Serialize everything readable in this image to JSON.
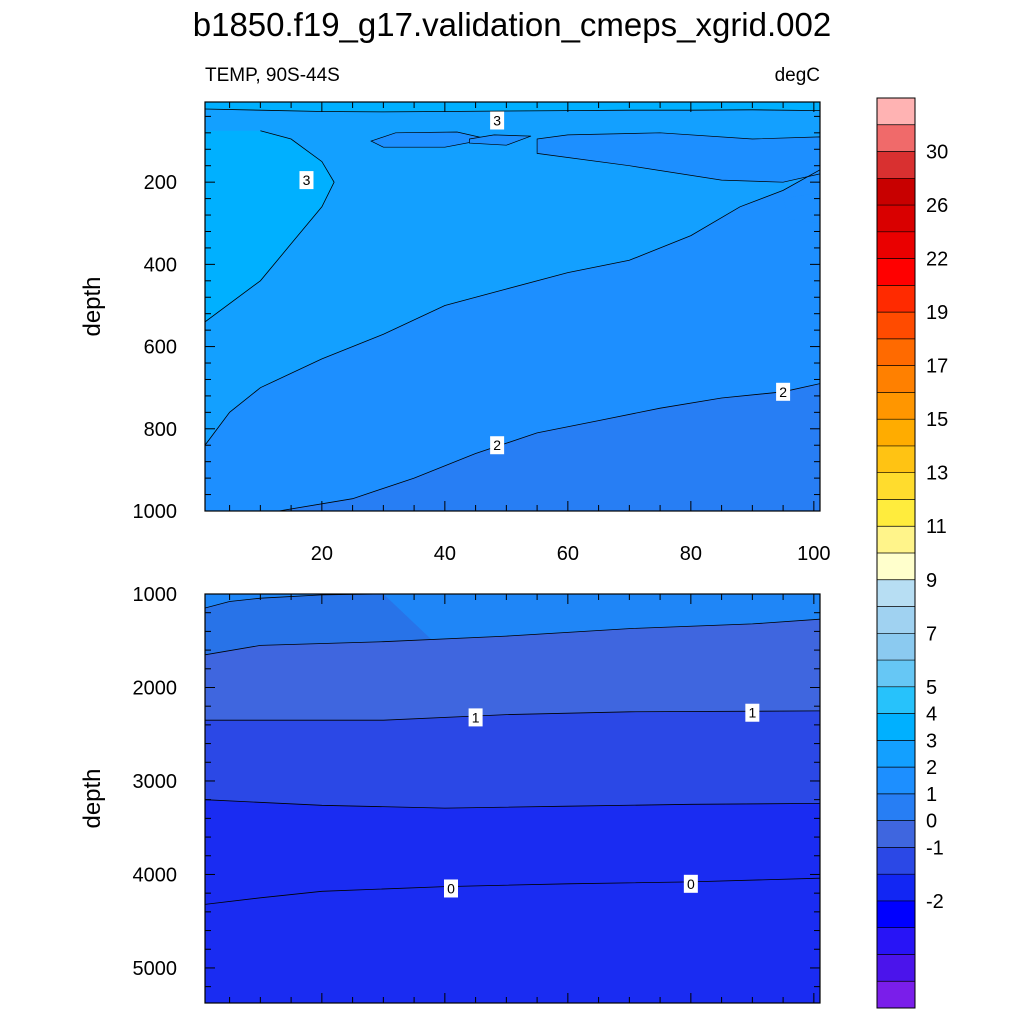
{
  "title": "b1850.f19_g17.validation_cmeps_xgrid.002",
  "chart_data": [
    {
      "type": "contour",
      "panel": "upper",
      "left_string": "TEMP, 90S-44S",
      "right_string": "degC",
      "ylabel": "depth",
      "xlim": [
        1,
        101
      ],
      "ylim": [
        1000,
        5
      ],
      "xticks": [
        20,
        40,
        60,
        80,
        100
      ],
      "xtick_labels": [
        "20",
        "40",
        "60",
        "80",
        "100"
      ],
      "yticks": [
        200,
        400,
        600,
        800,
        1000
      ],
      "ytick_labels": [
        "200",
        "400",
        "600",
        "800",
        "1000"
      ],
      "colors": {
        "band_gt_3": "#00b0ff",
        "band_3": "#13a0ff",
        "band_2_5": "#1d8fff",
        "band_2": "#277ef4"
      },
      "contours": [
        {
          "level": "3",
          "points": [
            [
              1,
              22
            ],
            [
              10,
              25
            ],
            [
              20,
              28
            ],
            [
              30,
              29
            ],
            [
              40,
              28
            ],
            [
              50,
              27
            ],
            [
              60,
              26
            ],
            [
              70,
              25
            ],
            [
              80,
              25
            ],
            [
              90,
              24
            ],
            [
              101,
              26
            ]
          ]
        },
        {
          "level": "3",
          "points": [
            [
              10,
              75
            ],
            [
              15,
              95
            ],
            [
              20,
              150
            ],
            [
              22,
              200
            ],
            [
              20,
              260
            ],
            [
              15,
              350
            ],
            [
              10,
              440
            ],
            [
              1,
              540
            ]
          ]
        },
        {
          "level": "2.5",
          "points": [
            [
              1,
              840
            ],
            [
              5,
              760
            ],
            [
              10,
              700
            ],
            [
              20,
              630
            ],
            [
              30,
              570
            ],
            [
              40,
              500
            ],
            [
              50,
              460
            ],
            [
              60,
              420
            ],
            [
              70,
              390
            ],
            [
              80,
              330
            ],
            [
              88,
              260
            ],
            [
              95,
              220
            ],
            [
              101,
              170
            ]
          ]
        },
        {
          "level": "2",
          "points": [
            [
              13,
              1000
            ],
            [
              25,
              970
            ],
            [
              35,
              920
            ],
            [
              45,
              860
            ],
            [
              55,
              810
            ],
            [
              65,
              780
            ],
            [
              75,
              750
            ],
            [
              85,
              725
            ],
            [
              95,
              710
            ],
            [
              101,
              690
            ]
          ]
        }
      ],
      "labels": [
        {
          "text": "3",
          "x": 48.5,
          "y": 50
        },
        {
          "text": "3",
          "x": 17.5,
          "y": 195
        },
        {
          "text": "2",
          "x": 48.5,
          "y": 840
        },
        {
          "text": "2",
          "x": 95,
          "y": 710
        }
      ]
    },
    {
      "type": "contour",
      "panel": "lower",
      "ylabel": "depth",
      "xlim": [
        1,
        101
      ],
      "ylim": [
        5375,
        1000
      ],
      "yticks": [
        1000,
        2000,
        3000,
        4000,
        5000
      ],
      "ytick_labels": [
        "1000",
        "2000",
        "3000",
        "4000",
        "5000"
      ],
      "colors": {
        "band_2": "#1f86f7",
        "band_1_5": "#2873e8",
        "band_1": "#3f66df",
        "band_0_5": "#2b48e6",
        "band_0": "#1a2cf2"
      },
      "contours": [
        {
          "level": "2",
          "points": [
            [
              1,
              1150
            ],
            [
              5,
              1080
            ],
            [
              10,
              1045
            ],
            [
              20,
              1010
            ],
            [
              30,
              1000
            ]
          ]
        },
        {
          "level": "1.5",
          "points": [
            [
              1,
              1650
            ],
            [
              10,
              1550
            ],
            [
              30,
              1510
            ],
            [
              50,
              1450
            ],
            [
              70,
              1370
            ],
            [
              90,
              1320
            ],
            [
              101,
              1270
            ]
          ]
        },
        {
          "level": "1",
          "points": [
            [
              1,
              2350
            ],
            [
              30,
              2350
            ],
            [
              50,
              2290
            ],
            [
              70,
              2260
            ],
            [
              101,
              2250
            ]
          ]
        },
        {
          "level": "0.5",
          "points": [
            [
              1,
              3200
            ],
            [
              20,
              3260
            ],
            [
              40,
              3290
            ],
            [
              60,
              3270
            ],
            [
              80,
              3250
            ],
            [
              101,
              3240
            ]
          ]
        },
        {
          "level": "0",
          "points": [
            [
              1,
              4320
            ],
            [
              10,
              4250
            ],
            [
              20,
              4180
            ],
            [
              40,
              4130
            ],
            [
              60,
              4100
            ],
            [
              80,
              4080
            ],
            [
              101,
              4040
            ]
          ]
        }
      ],
      "labels": [
        {
          "text": "1",
          "x": 45,
          "y": 2320
        },
        {
          "text": "1",
          "x": 90,
          "y": 2270
        },
        {
          "text": "0",
          "x": 41,
          "y": 4150
        },
        {
          "text": "0",
          "x": 80,
          "y": 4100
        }
      ]
    }
  ],
  "colorbar": {
    "colors": [
      "#ffb3b3",
      "#f06a6a",
      "#d93030",
      "#c80000",
      "#d90000",
      "#ea0000",
      "#ff0000",
      "#ff2a00",
      "#ff4b00",
      "#ff6a00",
      "#ff8000",
      "#ff9600",
      "#ffac00",
      "#ffc313",
      "#ffdc2d",
      "#ffec3d",
      "#fff48a",
      "#ffffcc",
      "#b7def3",
      "#a0d2f1",
      "#8bcaf0",
      "#66c7f5",
      "#27c2fb",
      "#00b0ff",
      "#13a0ff",
      "#1d8fff",
      "#277ef4",
      "#3f66df",
      "#2b48e6",
      "#1226f3",
      "#0000ff",
      "#2814f6",
      "#4b14eb",
      "#7a1eea"
    ],
    "labels": [
      "30",
      "26",
      "22",
      "19",
      "17",
      "15",
      "13",
      "11",
      "9",
      "7",
      "5",
      "4",
      "3",
      "2",
      "1",
      "0",
      "-1",
      "-2"
    ]
  }
}
